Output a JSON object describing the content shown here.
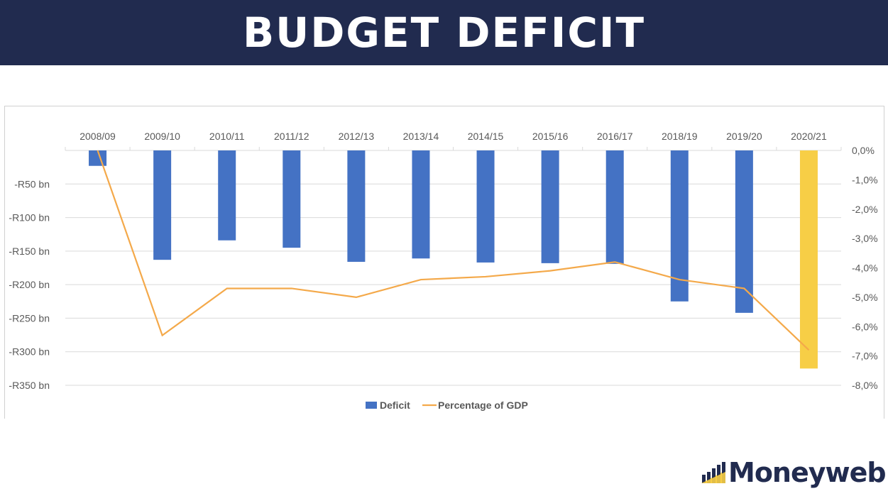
{
  "header": {
    "title": "BUDGET DEFICIT"
  },
  "logo": {
    "text": "Moneyweb"
  },
  "chart_data": {
    "type": "bar+line",
    "categories": [
      "2008/09",
      "2009/10",
      "2010/11",
      "2011/12",
      "2012/13",
      "2013/14",
      "2014/15",
      "2015/16",
      "2016/17",
      "2018/19",
      "2019/20",
      "2020/21"
    ],
    "series": [
      {
        "name": "Deficit",
        "type": "bar",
        "axis": "left",
        "unit": "R bn",
        "values": [
          -23,
          -163,
          -134,
          -145,
          -166,
          -161,
          -167,
          -168,
          -169,
          -225,
          -242,
          -325
        ],
        "color": "#4472c4",
        "highlight": {
          "2020/21": "#f7ce46"
        }
      },
      {
        "name": "Percentage of GDP",
        "type": "line",
        "axis": "right",
        "unit": "%",
        "values": [
          0.0,
          -6.3,
          -4.7,
          -4.7,
          -5.0,
          -4.4,
          -4.3,
          -4.1,
          -3.8,
          -4.4,
          -4.7,
          -6.8
        ],
        "color": "#f4a94a"
      }
    ],
    "left_axis": {
      "ylim": [
        -350,
        0
      ],
      "ticks": [
        "-R50 bn",
        "-R100 bn",
        "-R150 bn",
        "-R200 bn",
        "-R250 bn",
        "-R300 bn",
        "-R350 bn"
      ],
      "tick_values": [
        -50,
        -100,
        -150,
        -200,
        -250,
        -300,
        -350
      ]
    },
    "right_axis": {
      "ylim": [
        -8,
        0
      ],
      "ticks": [
        "0,0%",
        "-1,0%",
        "-2,0%",
        "-3,0%",
        "-4,0%",
        "-5,0%",
        "-6,0%",
        "-7,0%",
        "-8,0%"
      ],
      "tick_values": [
        0,
        -1,
        -2,
        -3,
        -4,
        -5,
        -6,
        -7,
        -8
      ]
    },
    "x_axis_position": "top",
    "grid": true,
    "legend": {
      "placement": "bottom",
      "entries": [
        "Deficit",
        "Percentage of GDP"
      ]
    }
  }
}
